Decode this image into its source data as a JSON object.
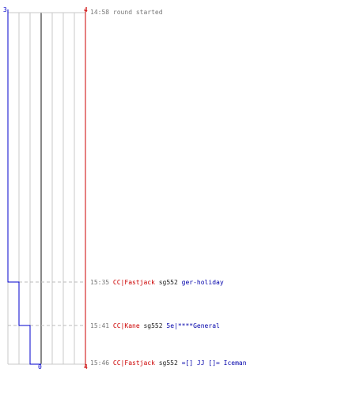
{
  "chart_data": {
    "type": "line",
    "top_labels": {
      "left": "3",
      "right": "4"
    },
    "bottom_labels": {
      "left": "0",
      "right": "4"
    },
    "colors": {
      "left_team": "#0000cc",
      "right_team": "#cc0000",
      "grid": "#c8c8c8",
      "center": "#888888",
      "guide": "#bbbbbb"
    },
    "left_score_steps": [
      {
        "time": "14:58",
        "value": 3
      },
      {
        "time": "15:35",
        "value": 2
      },
      {
        "time": "15:41",
        "value": 1
      },
      {
        "time": "15:46",
        "value": 0
      }
    ],
    "right_score_steps": [
      {
        "time": "14:58",
        "value": 4
      },
      {
        "time": "15:46",
        "value": 4
      }
    ]
  },
  "events": [
    {
      "time": "14:58",
      "text": "round started"
    },
    {
      "time": "15:35",
      "player": "CC|Fastjack",
      "victim_pre": "sg552",
      "victim": "ger-holiday"
    },
    {
      "time": "15:41",
      "player": "CC|Kane",
      "victim_pre": "sg552",
      "victim": "5e|****General"
    },
    {
      "time": "15:46",
      "player": "CC|Fastjack",
      "victim_pre": "sg552",
      "victim": "=[] JJ []= Iceman"
    }
  ]
}
